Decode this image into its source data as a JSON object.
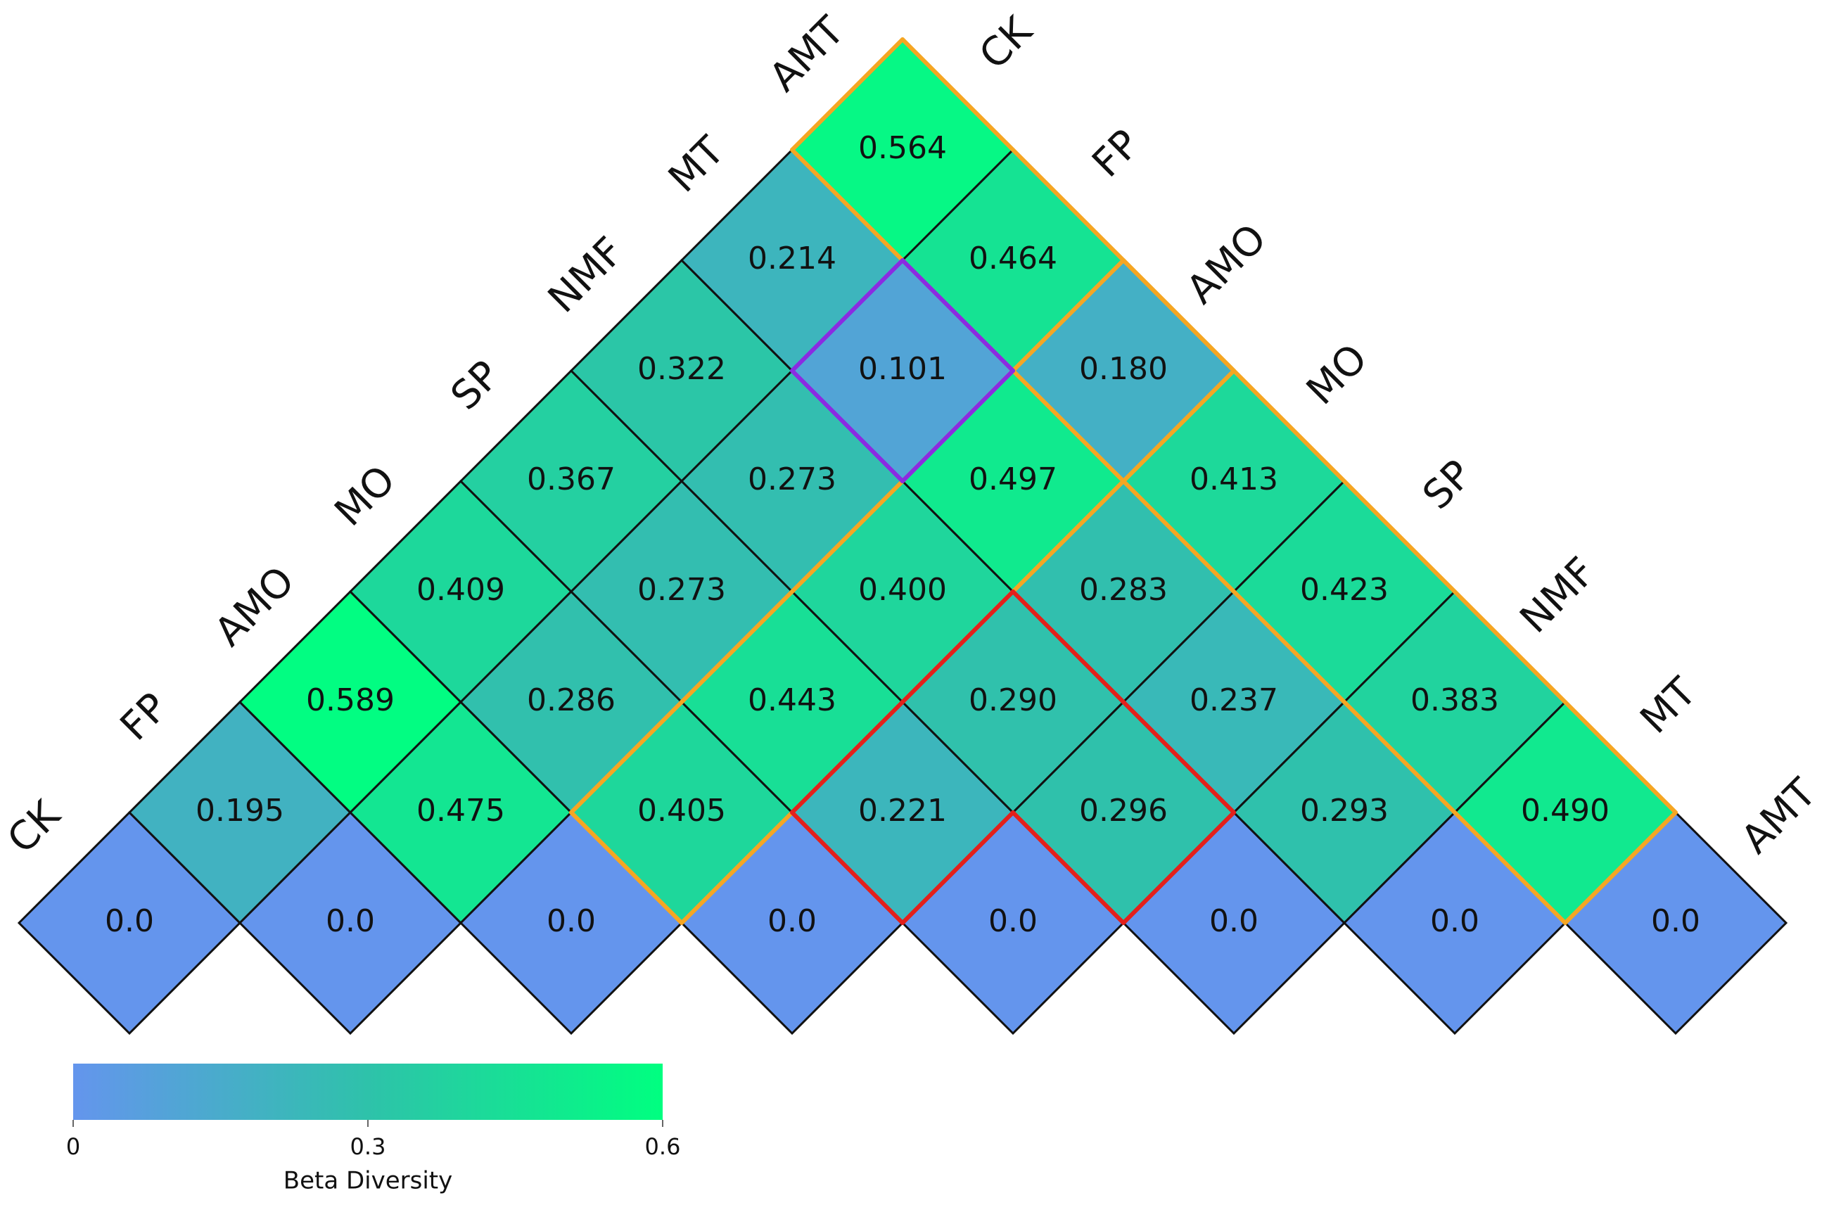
{
  "chart_data": {
    "type": "heatmap",
    "left_labels": [
      "CK",
      "FP",
      "AMO",
      "MO",
      "SP",
      "NMF",
      "MT",
      "AMT"
    ],
    "right_labels": [
      "CK",
      "FP",
      "AMO",
      "MO",
      "SP",
      "NMF",
      "MT",
      "AMT"
    ],
    "values": [
      [
        0.0,
        0.195,
        0.589,
        0.409,
        0.367,
        0.322,
        0.214,
        0.564
      ],
      [
        null,
        0.0,
        0.475,
        0.286,
        0.273,
        0.273,
        0.101,
        0.464
      ],
      [
        null,
        null,
        0.0,
        0.405,
        0.443,
        0.4,
        0.497,
        0.18
      ],
      [
        null,
        null,
        null,
        0.0,
        0.221,
        0.29,
        0.283,
        0.413
      ],
      [
        null,
        null,
        null,
        null,
        0.0,
        0.296,
        0.237,
        0.423
      ],
      [
        null,
        null,
        null,
        null,
        null,
        0.0,
        0.293,
        0.383
      ],
      [
        null,
        null,
        null,
        null,
        null,
        null,
        0.0,
        0.49
      ],
      [
        null,
        null,
        null,
        null,
        null,
        null,
        null,
        0.0
      ]
    ],
    "value_labels": [
      [
        "0.0",
        "0.195",
        "0.589",
        "0.409",
        "0.367",
        "0.322",
        "0.214",
        "0.564"
      ],
      [
        null,
        "0.0",
        "0.475",
        "0.286",
        "0.273",
        "0.273",
        "0.101",
        "0.464"
      ],
      [
        null,
        null,
        "0.0",
        "0.405",
        "0.443",
        "0.400",
        "0.497",
        "0.180"
      ],
      [
        null,
        null,
        null,
        "0.0",
        "0.221",
        "0.290",
        "0.283",
        "0.413"
      ],
      [
        null,
        null,
        null,
        null,
        "0.0",
        "0.296",
        "0.237",
        "0.423"
      ],
      [
        null,
        null,
        null,
        null,
        null,
        "0.0",
        "0.293",
        "0.383"
      ],
      [
        null,
        null,
        null,
        null,
        null,
        null,
        "0.0",
        "0.490"
      ],
      [
        null,
        null,
        null,
        null,
        null,
        null,
        null,
        "0.0"
      ]
    ],
    "colormap": [
      "#6495ed",
      "#2ec2aa",
      "#00ff80"
    ],
    "colorbar": {
      "label": "Beta Diversity",
      "lim": [
        0,
        0.6
      ],
      "ticks": [
        0,
        0.3,
        0.6
      ]
    }
  }
}
